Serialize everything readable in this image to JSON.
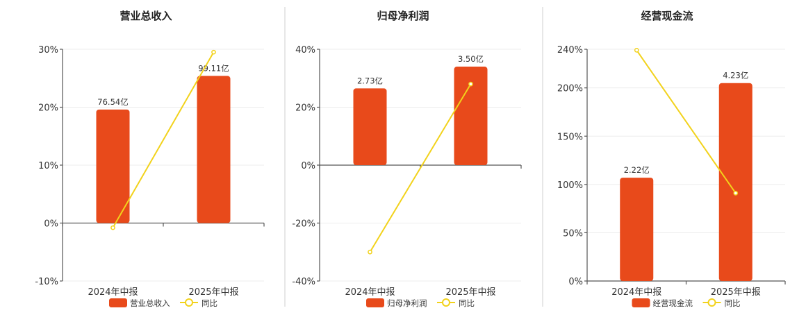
{
  "colors": {
    "bar": "#e84a1b",
    "line": "#f2d21b"
  },
  "chart_data": [
    {
      "type": "bar",
      "title": "营业总收入",
      "categories": [
        "2024年中报",
        "2025年中报"
      ],
      "series": [
        {
          "name": "营业总收入",
          "type": "bar",
          "values": [
            19.6,
            25.4
          ],
          "labels": [
            "76.54亿",
            "99.11亿"
          ]
        },
        {
          "name": "同比",
          "type": "line",
          "values": [
            -0.8,
            29.5
          ]
        }
      ],
      "yticks": [
        "-10%",
        "0%",
        "10%",
        "20%",
        "30%"
      ],
      "ylim": [
        -10,
        30
      ],
      "legend": "bottom"
    },
    {
      "type": "bar",
      "title": "归母净利润",
      "categories": [
        "2024年中报",
        "2025年中报"
      ],
      "series": [
        {
          "name": "归母净利润",
          "type": "bar",
          "values": [
            26.5,
            34
          ],
          "labels": [
            "2.73亿",
            "3.50亿"
          ]
        },
        {
          "name": "同比",
          "type": "line",
          "values": [
            -30,
            28
          ]
        }
      ],
      "yticks": [
        "-40%",
        "-20%",
        "0%",
        "20%",
        "40%"
      ],
      "ylim": [
        -40,
        40
      ],
      "legend": "bottom"
    },
    {
      "type": "bar",
      "title": "经营现金流",
      "categories": [
        "2024年中报",
        "2025年中报"
      ],
      "series": [
        {
          "name": "经营现金流",
          "type": "bar",
          "values": [
            107,
            205
          ],
          "labels": [
            "2.22亿",
            "4.23亿"
          ]
        },
        {
          "name": "同比",
          "type": "line",
          "values": [
            239,
            91
          ]
        }
      ],
      "yticks": [
        "0%",
        "50%",
        "100%",
        "150%",
        "200%",
        "240%"
      ],
      "ylim": [
        0,
        240
      ],
      "legend": "bottom"
    }
  ]
}
